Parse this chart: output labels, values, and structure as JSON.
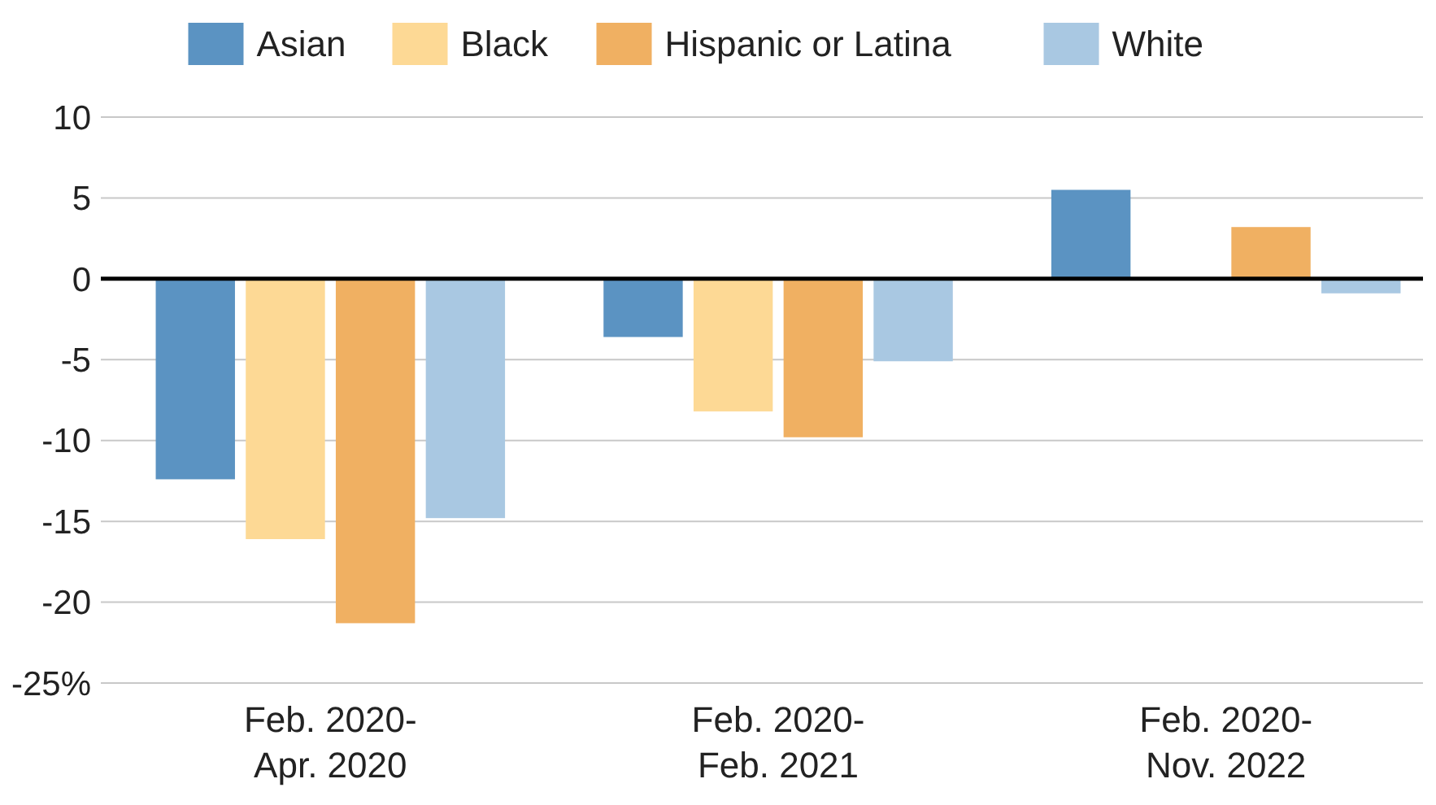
{
  "chart_data": {
    "type": "bar",
    "categories": [
      "Feb. 2020-\nApr. 2020",
      "Feb. 2020-\nFeb. 2021",
      "Feb. 2020-\nNov. 2022"
    ],
    "series": [
      {
        "name": "Asian",
        "color": "#5b93c2",
        "values": [
          -12.4,
          -3.6,
          5.5
        ]
      },
      {
        "name": "Black",
        "color": "#fdd995",
        "values": [
          -16.1,
          -8.2,
          0
        ]
      },
      {
        "name": "Hispanic or Latina",
        "color": "#f0b062",
        "values": [
          -21.3,
          -9.8,
          3.2
        ]
      },
      {
        "name": "White",
        "color": "#a9c8e2",
        "values": [
          -14.8,
          -5.1,
          -0.9
        ]
      }
    ],
    "ylim": [
      -25,
      10
    ],
    "yticks": [
      10,
      5,
      0,
      -5,
      -10,
      -15,
      -20,
      {
        "value": -25,
        "label": "-25%"
      }
    ],
    "ref_lines": [
      {
        "axis": "y",
        "value": 0,
        "color": "#000000"
      }
    ],
    "grid": "y",
    "legend": "top"
  }
}
